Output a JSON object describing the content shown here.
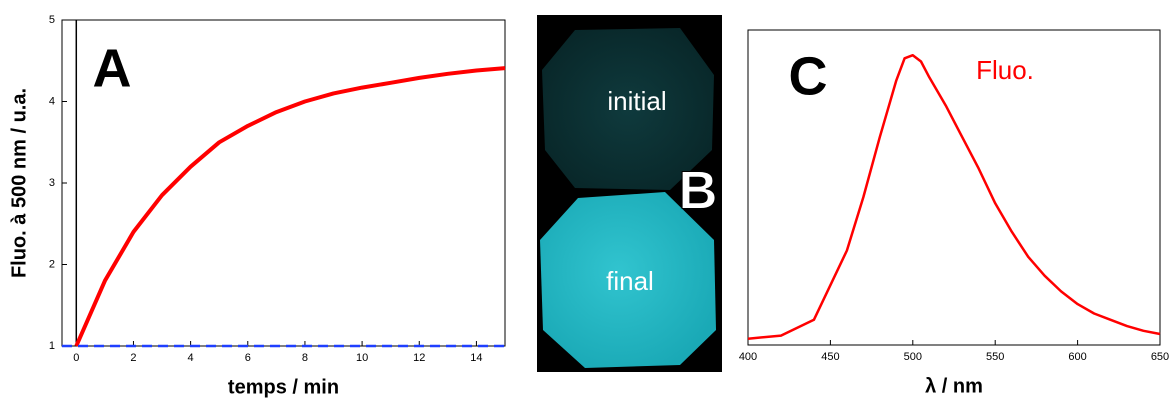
{
  "chart_data": [
    {
      "type": "line",
      "panel": "A",
      "x_label": "temps / min",
      "y_label": "Fluo. à 500 nm / u.a.",
      "xlim": [
        -0.5,
        15
      ],
      "xticks": [
        0,
        2,
        4,
        6,
        8,
        10,
        12,
        14
      ],
      "ylim": [
        1,
        5
      ],
      "yticks": [
        1,
        2,
        3,
        4,
        5
      ],
      "zero_line": true,
      "series": [
        {
          "color": "#ff0000",
          "linestyle": "solid",
          "width": 4,
          "x": [
            0,
            1,
            2,
            3,
            4,
            5,
            6,
            7,
            8,
            9,
            10,
            11,
            12,
            13,
            14,
            15
          ],
          "values": [
            1.0,
            1.8,
            2.4,
            2.85,
            3.2,
            3.5,
            3.7,
            3.87,
            4.0,
            4.1,
            4.17,
            4.23,
            4.29,
            4.34,
            4.38,
            4.41
          ]
        },
        {
          "color": "#1f3fff",
          "linestyle": "dashed",
          "width": 2.5,
          "x": [
            -0.5,
            15
          ],
          "values": [
            1,
            1
          ]
        }
      ]
    },
    {
      "type": "line",
      "panel": "C",
      "x_label": "λ / nm",
      "annotation": "Fluo.",
      "annotation_color": "#ff0000",
      "xlim": [
        400,
        650
      ],
      "xticks": [
        400,
        450,
        500,
        550,
        600,
        650
      ],
      "ylim": [
        0,
        1
      ],
      "series": [
        {
          "color": "#ff0000",
          "linestyle": "solid",
          "width": 2.5,
          "x": [
            400,
            420,
            440,
            460,
            470,
            480,
            490,
            495,
            500,
            505,
            510,
            520,
            530,
            540,
            550,
            560,
            570,
            580,
            590,
            600,
            610,
            620,
            630,
            640,
            650
          ],
          "values": [
            0.02,
            0.03,
            0.08,
            0.3,
            0.47,
            0.66,
            0.84,
            0.91,
            0.92,
            0.9,
            0.85,
            0.76,
            0.66,
            0.56,
            0.45,
            0.36,
            0.28,
            0.22,
            0.17,
            0.13,
            0.1,
            0.08,
            0.06,
            0.045,
            0.035
          ]
        }
      ]
    }
  ],
  "image_panel": {
    "panel": "B",
    "top_text": "initial",
    "bottom_text": "final"
  }
}
